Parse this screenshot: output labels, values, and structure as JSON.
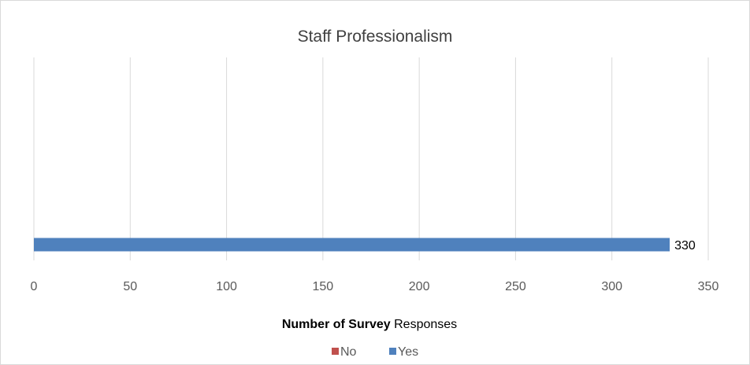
{
  "chart_data": {
    "type": "bar",
    "orientation": "horizontal",
    "title": "Staff Professionalism",
    "xlabel_bold": "Number of Survey",
    "xlabel_rest": "Responses",
    "ylabel": "",
    "xlim": [
      0,
      350
    ],
    "xticks": [
      "0",
      "50",
      "100",
      "150",
      "200",
      "250",
      "300",
      "350"
    ],
    "grid": true,
    "legend_position": "bottom",
    "series": [
      {
        "name": "No",
        "color": "#c0504d",
        "values": [
          0
        ]
      },
      {
        "name": "Yes",
        "color": "#4f81bd",
        "values": [
          330
        ]
      }
    ],
    "data_labels": [
      "330"
    ]
  }
}
